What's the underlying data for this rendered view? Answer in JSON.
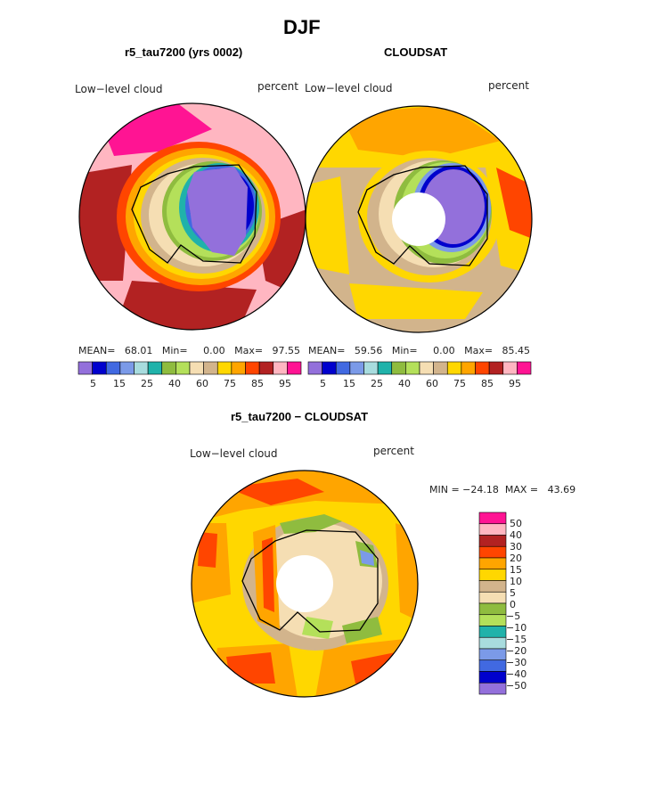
{
  "figure": {
    "title": "DJF",
    "season": "DJF"
  },
  "palette": {
    "abs": [
      "#9370db",
      "#0000cd",
      "#4169e1",
      "#7b9ae8",
      "#a8dcde",
      "#20b2aa",
      "#8fbc3f",
      "#b4e05a",
      "#f5deb3",
      "#d2b48c",
      "#ffd700",
      "#ffa500",
      "#ff4500",
      "#b22222",
      "#ffb6c1",
      "#ff1493"
    ],
    "diff": [
      "#ff1493",
      "#ffb6c1",
      "#b22222",
      "#ff4500",
      "#ffa500",
      "#ffd700",
      "#d2b48c",
      "#f5deb3",
      "#8fbc3f",
      "#b4e05a",
      "#20b2aa",
      "#a8dcde",
      "#7b9ae8",
      "#4169e1",
      "#0000cd",
      "#9370db"
    ]
  },
  "panels": [
    {
      "id": "model",
      "title": "r5_tau7200 (yrs 0002)",
      "variable": "Low−level cloud",
      "units": "percent",
      "stats": "MEAN=   68.01   Min=     0.00   Max=   97.55",
      "colorbar_ticks": [
        "5",
        "15",
        "25",
        "40",
        "60",
        "75",
        "85",
        "95"
      ]
    },
    {
      "id": "obs",
      "title": "CLOUDSAT",
      "variable": "Low−level cloud",
      "units": "percent",
      "stats": "MEAN=   59.56   Min=     0.00   Max=   85.45",
      "colorbar_ticks": [
        "5",
        "15",
        "25",
        "40",
        "60",
        "75",
        "85",
        "95"
      ]
    },
    {
      "id": "diff",
      "title": "r5_tau7200 − CLOUDSAT",
      "variable": "Low−level cloud",
      "units": "percent",
      "stats": "MIN = −24.18  MAX =   43.69",
      "colorbar_labels": [
        "50",
        "40",
        "30",
        "20",
        "15",
        "10",
        "5",
        "0",
        "−5",
        "−10",
        "−15",
        "−20",
        "−30",
        "−40",
        "−50"
      ]
    }
  ]
}
